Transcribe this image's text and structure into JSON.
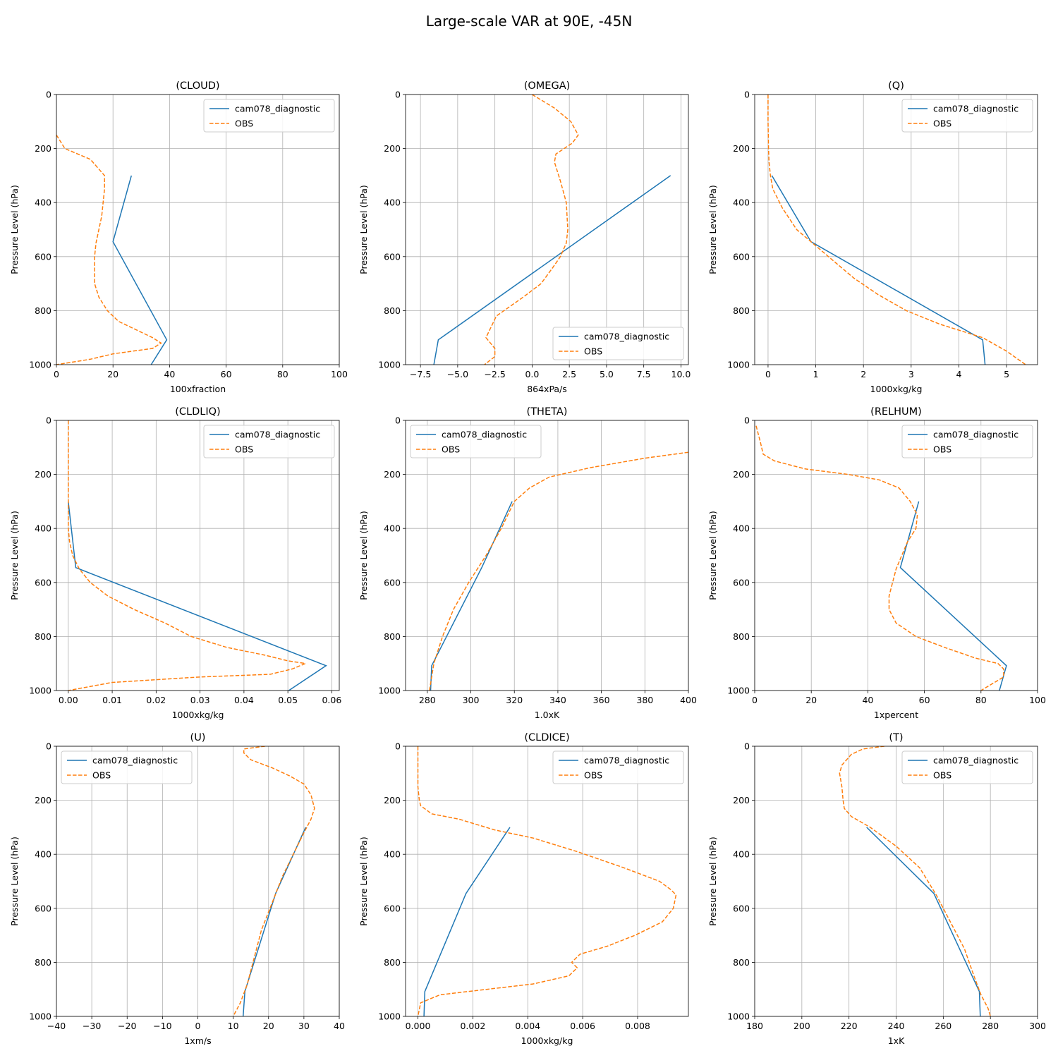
{
  "figure": {
    "title": "Large-scale VAR at 90E, -45N"
  },
  "colors": {
    "model": "#1f77b4",
    "obs": "#ff7f0e"
  },
  "legend_labels": [
    "cam078_diagnostic",
    "OBS"
  ],
  "chart_data": [
    {
      "type": "line",
      "title": "(CLOUD)",
      "xlabel": "100xfraction",
      "ylabel": "Pressure Level (hPa)",
      "xlim": [
        0,
        100
      ],
      "ylim": [
        1000,
        0
      ],
      "grid": true,
      "legend": "top-right",
      "xticks": [
        0,
        20,
        40,
        60,
        80,
        100
      ],
      "yticks": [
        0,
        200,
        400,
        600,
        800,
        1000
      ],
      "xticklabels": [
        "0",
        "20",
        "40",
        "60",
        "80",
        "100"
      ],
      "yticklabels": [
        "0",
        "200",
        "400",
        "600",
        "800",
        "1000"
      ],
      "series": [
        {
          "name": "cam078_diagnostic",
          "style": "solid",
          "x": [
            26.5,
            20,
            39,
            33.5
          ],
          "y": [
            300,
            545,
            908,
            1000
          ]
        },
        {
          "name": "OBS",
          "style": "dashed",
          "x": [
            0,
            3,
            12,
            17,
            17,
            16,
            14,
            13.5,
            13.5,
            15,
            18,
            22,
            28,
            34,
            37,
            34,
            20,
            12,
            0
          ],
          "y": [
            150,
            200,
            240,
            300,
            350,
            450,
            550,
            600,
            700,
            750,
            800,
            840,
            870,
            900,
            920,
            940,
            960,
            980,
            1000
          ]
        }
      ]
    },
    {
      "type": "line",
      "title": "(OMEGA)",
      "xlabel": "864xPa/s",
      "ylabel": "Pressure Level (hPa)",
      "xlim": [
        -8.5,
        10.5
      ],
      "ylim": [
        1000,
        0
      ],
      "grid": true,
      "legend": "bottom-right",
      "xticks": [
        -7.5,
        -5,
        -2.5,
        0,
        2.5,
        5,
        7.5,
        10
      ],
      "yticks": [
        0,
        200,
        400,
        600,
        800,
        1000
      ],
      "xticklabels": [
        "−7.5",
        "−5.0",
        "−2.5",
        "0.0",
        "2.5",
        "5.0",
        "7.5",
        "10.0"
      ],
      "yticklabels": [
        "0",
        "200",
        "400",
        "600",
        "800",
        "1000"
      ],
      "series": [
        {
          "name": "cam078_diagnostic",
          "style": "solid",
          "x": [
            9.3,
            -6.3,
            -6.6
          ],
          "y": [
            300,
            908,
            1000
          ]
        },
        {
          "name": "OBS",
          "style": "dashed",
          "x": [
            0,
            1.5,
            2.6,
            3.1,
            2.7,
            1.6,
            1.5,
            1.9,
            2.3,
            2.4,
            2.3,
            1.9,
            1.4,
            0.6,
            -0.6,
            -2.4,
            -3.1,
            -2.5,
            -2.5,
            -3.2
          ],
          "y": [
            0,
            50,
            100,
            150,
            180,
            220,
            250,
            320,
            400,
            500,
            550,
            600,
            640,
            700,
            750,
            820,
            900,
            940,
            970,
            1000
          ]
        }
      ]
    },
    {
      "type": "line",
      "title": "(Q)",
      "xlabel": "1000xkg/kg",
      "ylabel": "Pressure Level (hPa)",
      "xlim": [
        -0.28,
        5.65
      ],
      "ylim": [
        1000,
        0
      ],
      "grid": true,
      "legend": "top-right",
      "xticks": [
        0,
        1,
        2,
        3,
        4,
        5
      ],
      "yticks": [
        0,
        200,
        400,
        600,
        800,
        1000
      ],
      "xticklabels": [
        "0",
        "1",
        "2",
        "3",
        "4",
        "5"
      ],
      "yticklabels": [
        "0",
        "200",
        "400",
        "600",
        "800",
        "1000"
      ],
      "series": [
        {
          "name": "cam078_diagnostic",
          "style": "solid",
          "x": [
            0.08,
            0.9,
            4.5,
            4.55
          ],
          "y": [
            300,
            545,
            908,
            1000
          ]
        },
        {
          "name": "OBS",
          "style": "dashed",
          "x": [
            0,
            0,
            0.01,
            0.02,
            0.05,
            0.1,
            0.3,
            0.6,
            1,
            1.4,
            1.8,
            2.3,
            2.9,
            3.6,
            4.5,
            5,
            5.4
          ],
          "y": [
            0,
            100,
            200,
            250,
            300,
            350,
            420,
            500,
            560,
            620,
            680,
            740,
            800,
            850,
            900,
            950,
            1000
          ]
        }
      ]
    },
    {
      "type": "line",
      "title": "(CLDLIQ)",
      "xlabel": "1000xkg/kg",
      "ylabel": "Pressure Level (hPa)",
      "xlim": [
        -0.0027,
        0.0617
      ],
      "ylim": [
        1000,
        0
      ],
      "grid": true,
      "legend": "top-right",
      "xticks": [
        0,
        0.01,
        0.02,
        0.03,
        0.04,
        0.05,
        0.06
      ],
      "yticks": [
        0,
        200,
        400,
        600,
        800,
        1000
      ],
      "xticklabels": [
        "0.00",
        "0.01",
        "0.02",
        "0.03",
        "0.04",
        "0.05",
        "0.06"
      ],
      "yticklabels": [
        "0",
        "200",
        "400",
        "600",
        "800",
        "1000"
      ],
      "series": [
        {
          "name": "cam078_diagnostic",
          "style": "solid",
          "x": [
            0,
            0.0017,
            0.0587,
            0.0502
          ],
          "y": [
            300,
            545,
            908,
            1000
          ]
        },
        {
          "name": "OBS",
          "style": "dashed",
          "x": [
            0,
            0,
            0,
            0.0003,
            0.001,
            0.0025,
            0.005,
            0.009,
            0.015,
            0.022,
            0.028,
            0.036,
            0.045,
            0.05,
            0.054,
            0.051,
            0.046,
            0.03,
            0.01,
            0
          ],
          "y": [
            0,
            200,
            400,
            450,
            500,
            550,
            600,
            650,
            700,
            750,
            800,
            840,
            870,
            890,
            900,
            920,
            940,
            950,
            970,
            1000
          ]
        }
      ]
    },
    {
      "type": "line",
      "title": "(THETA)",
      "xlabel": "1.0xK",
      "ylabel": "Pressure Level (hPa)",
      "xlim": [
        270,
        400
      ],
      "ylim": [
        1000,
        0
      ],
      "grid": true,
      "legend": "top-left",
      "xticks": [
        280,
        300,
        320,
        340,
        360,
        380,
        400
      ],
      "yticks": [
        0,
        200,
        400,
        600,
        800,
        1000
      ],
      "xticklabels": [
        "280",
        "300",
        "320",
        "340",
        "360",
        "380",
        "400"
      ],
      "yticklabels": [
        "0",
        "200",
        "400",
        "600",
        "800",
        "1000"
      ],
      "series": [
        {
          "name": "cam078_diagnostic",
          "style": "solid",
          "x": [
            319,
            305,
            282,
            281.5
          ],
          "y": [
            300,
            545,
            908,
            1000
          ]
        },
        {
          "name": "OBS",
          "style": "dashed",
          "x": [
            400,
            380,
            355,
            336,
            327,
            320,
            314,
            307,
            299,
            292,
            287,
            283,
            282,
            281
          ],
          "y": [
            118,
            140,
            175,
            210,
            250,
            300,
            400,
            500,
            600,
            700,
            800,
            900,
            950,
            1000
          ]
        }
      ]
    },
    {
      "type": "line",
      "title": "(RELHUM)",
      "xlabel": "1xpercent",
      "ylabel": "Pressure Level (hPa)",
      "xlim": [
        0,
        100
      ],
      "ylim": [
        1000,
        0
      ],
      "grid": true,
      "legend": "top-right",
      "xticks": [
        0,
        20,
        40,
        60,
        80,
        100
      ],
      "yticks": [
        0,
        200,
        400,
        600,
        800,
        1000
      ],
      "xticklabels": [
        "0",
        "20",
        "40",
        "60",
        "80",
        "100"
      ],
      "yticklabels": [
        "0",
        "200",
        "400",
        "600",
        "800",
        "1000"
      ],
      "series": [
        {
          "name": "cam078_diagnostic",
          "style": "solid",
          "x": [
            58,
            51.5,
            89,
            86.5
          ],
          "y": [
            300,
            545,
            908,
            1000
          ]
        },
        {
          "name": "OBS",
          "style": "dashed",
          "x": [
            0.5,
            2,
            3,
            7,
            18,
            33,
            44,
            51,
            55,
            57.5,
            57,
            54,
            50,
            47.5,
            47.5,
            50,
            57,
            67,
            78,
            86,
            88,
            88,
            80
          ],
          "y": [
            20,
            80,
            125,
            150,
            180,
            200,
            220,
            250,
            300,
            350,
            400,
            450,
            550,
            650,
            700,
            750,
            800,
            840,
            880,
            900,
            920,
            950,
            1000
          ]
        }
      ]
    },
    {
      "type": "line",
      "title": "(U)",
      "xlabel": "1xm/s",
      "ylabel": "Pressure Level (hPa)",
      "xlim": [
        -40,
        40
      ],
      "ylim": [
        1000,
        0
      ],
      "grid": true,
      "legend": "top-left",
      "xticks": [
        -40,
        -30,
        -20,
        -10,
        0,
        10,
        20,
        30,
        40
      ],
      "yticks": [
        0,
        200,
        400,
        600,
        800,
        1000
      ],
      "xticklabels": [
        "−40",
        "−30",
        "−20",
        "−10",
        "0",
        "10",
        "20",
        "30",
        "40"
      ],
      "yticklabels": [
        "0",
        "200",
        "400",
        "600",
        "800",
        "1000"
      ],
      "series": [
        {
          "name": "cam078_diagnostic",
          "style": "solid",
          "x": [
            30.5,
            22,
            13.3,
            12.8
          ],
          "y": [
            300,
            545,
            908,
            1000
          ]
        },
        {
          "name": "OBS",
          "style": "dashed",
          "x": [
            19,
            13,
            13,
            15,
            21,
            26,
            30,
            32,
            33,
            32,
            30,
            27,
            24,
            21,
            18,
            16,
            14,
            12,
            10
          ],
          "y": [
            0,
            10,
            25,
            50,
            80,
            110,
            140,
            180,
            230,
            270,
            320,
            400,
            480,
            580,
            680,
            780,
            880,
            950,
            1000
          ]
        }
      ]
    },
    {
      "type": "line",
      "title": "(CLDICE)",
      "xlabel": "1000xkg/kg",
      "ylabel": "Pressure Level (hPa)",
      "xlim": [
        -0.00045,
        0.00985
      ],
      "ylim": [
        1000,
        0
      ],
      "grid": true,
      "legend": "top-right",
      "xticks": [
        0,
        0.002,
        0.004,
        0.006,
        0.008
      ],
      "yticks": [
        0,
        200,
        400,
        600,
        800,
        1000
      ],
      "xticklabels": [
        "0.000",
        "0.002",
        "0.004",
        "0.006",
        "0.008"
      ],
      "yticklabels": [
        "0",
        "200",
        "400",
        "600",
        "800",
        "1000"
      ],
      "series": [
        {
          "name": "cam078_diagnostic",
          "style": "solid",
          "x": [
            0.00335,
            0.00175,
            0.00025,
            0.00022
          ],
          "y": [
            300,
            545,
            908,
            1000
          ]
        },
        {
          "name": "OBS",
          "style": "dashed",
          "x": [
            0,
            0,
            5e-05,
            0.0001,
            0.0005,
            0.0015,
            0.0028,
            0.0042,
            0.0058,
            0.0075,
            0.0088,
            0.0092,
            0.0094,
            0.0093,
            0.0089,
            0.0079,
            0.0069,
            0.0059,
            0.0056,
            0.0058,
            0.0055,
            0.0042,
            0.0025,
            0.0008,
            0.0001,
            0
          ],
          "y": [
            0,
            150,
            200,
            220,
            250,
            270,
            310,
            340,
            390,
            450,
            500,
            530,
            550,
            600,
            650,
            700,
            740,
            770,
            800,
            820,
            850,
            880,
            900,
            920,
            950,
            1000
          ]
        }
      ]
    },
    {
      "type": "line",
      "title": "(T)",
      "xlabel": "1xK",
      "ylabel": "Pressure Level (hPa)",
      "xlim": [
        180,
        300
      ],
      "ylim": [
        1000,
        0
      ],
      "grid": true,
      "legend": "top-right",
      "xticks": [
        180,
        200,
        220,
        240,
        260,
        280,
        300
      ],
      "yticks": [
        0,
        200,
        400,
        600,
        800,
        1000
      ],
      "xticklabels": [
        "180",
        "200",
        "220",
        "240",
        "260",
        "280",
        "300"
      ],
      "yticklabels": [
        "0",
        "200",
        "400",
        "600",
        "800",
        "1000"
      ],
      "series": [
        {
          "name": "cam078_diagnostic",
          "style": "solid",
          "x": [
            227.5,
            256,
            275.3,
            275.7
          ],
          "y": [
            300,
            545,
            908,
            1000
          ]
        },
        {
          "name": "OBS",
          "style": "dashed",
          "x": [
            235,
            226,
            221,
            217,
            216,
            217,
            217.5,
            218,
            221,
            229,
            240,
            250,
            257,
            263,
            269,
            273,
            276,
            279,
            280
          ],
          "y": [
            0,
            10,
            30,
            70,
            100,
            150,
            200,
            230,
            260,
            300,
            370,
            450,
            550,
            650,
            750,
            850,
            920,
            970,
            1000
          ]
        }
      ]
    }
  ]
}
